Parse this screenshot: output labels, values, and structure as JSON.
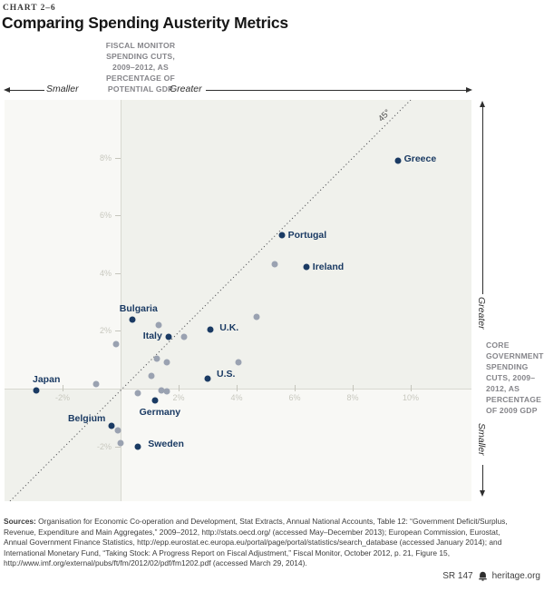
{
  "header": {
    "eyebrow": "CHART 2–6",
    "title": "Comparing Spending Austerity Metrics"
  },
  "x_axis": {
    "label_lines": [
      "FISCAL MONITOR",
      "SPENDING CUTS,",
      "2009–2012, AS",
      "PERCENTAGE OF",
      "POTENTIAL GDP"
    ],
    "smaller": "Smaller",
    "greater": "Greater",
    "ticks": [
      "-2%",
      "2%",
      "4%",
      "6%",
      "8%",
      "10%"
    ]
  },
  "y_axis": {
    "label_lines": [
      "CORE",
      "GOVERNMENT",
      "SPENDING",
      "CUTS, 2009–",
      "2012, AS",
      "PERCENTAGE",
      "OF 2009 GDP"
    ],
    "smaller": "Smaller",
    "greater": "Greater",
    "ticks": [
      "8%",
      "6%",
      "4%",
      "2%",
      "-2%"
    ]
  },
  "colors": {
    "highlight_point": "#1a3a63",
    "other_point": "#9aa2b1",
    "quadrant_shade": "#f0f1ec",
    "plot_background": "#f8f8f5"
  },
  "chart_data": {
    "type": "scatter",
    "title": "Comparing Spending Austerity Metrics",
    "xlabel": "Fiscal Monitor Spending Cuts, 2009–2012, as Percentage of Potential GDP",
    "ylabel": "Core Government Spending Cuts, 2009–2012, as Percentage of 2009 GDP",
    "xlim": [
      -4,
      12.1
    ],
    "ylim": [
      -3.9,
      10
    ],
    "x_ticks": [
      -2,
      2,
      4,
      6,
      8,
      10
    ],
    "y_ticks": [
      8,
      6,
      4,
      2,
      -2
    ],
    "grid": false,
    "reference_line": "45-degree dotted diagonal through origin",
    "diagonal_label": "45°",
    "series": [
      {
        "name": "highlighted-countries",
        "color": "#1a3a63",
        "points": [
          {
            "label": "Greece",
            "x": 9.55,
            "y": 7.9,
            "label_side": "right",
            "dy": -1
          },
          {
            "label": "Portugal",
            "x": 5.55,
            "y": 5.3,
            "label_side": "right"
          },
          {
            "label": "Ireland",
            "x": 6.4,
            "y": 4.2,
            "label_side": "right"
          },
          {
            "label": "Bulgaria",
            "x": 0.4,
            "y": 2.4,
            "label_side": "above",
            "dx": 7
          },
          {
            "label": "U.K.",
            "x": 3.1,
            "y": 2.05,
            "label_side": "right",
            "dx": 3,
            "dy": -1
          },
          {
            "label": "Italy",
            "x": 1.65,
            "y": 1.8,
            "label_side": "left"
          },
          {
            "label": "U.S.",
            "x": 3.0,
            "y": 0.35,
            "label_side": "right",
            "dx": 3,
            "dy": -4
          },
          {
            "label": "Germany",
            "x": 1.2,
            "y": -0.4,
            "label_side": "below",
            "dx": 5
          },
          {
            "label": "Japan",
            "x": -2.9,
            "y": -0.05,
            "label_side": "above",
            "dx": 11
          },
          {
            "label": "Belgium",
            "x": -0.3,
            "y": -1.3,
            "label_side": "left",
            "dy": -8
          },
          {
            "label": "Sweden",
            "x": 0.6,
            "y": -2.0,
            "label_side": "right",
            "dx": 4,
            "dy": -2
          }
        ]
      },
      {
        "name": "other-countries",
        "color": "#9aa2b1",
        "points": [
          {
            "x": 5.3,
            "y": 4.3
          },
          {
            "x": 4.7,
            "y": 2.5
          },
          {
            "x": 1.3,
            "y": 2.2
          },
          {
            "x": 2.2,
            "y": 1.8
          },
          {
            "x": -0.15,
            "y": 1.55
          },
          {
            "x": 1.25,
            "y": 1.05
          },
          {
            "x": 1.6,
            "y": 0.9
          },
          {
            "x": 4.05,
            "y": 0.9
          },
          {
            "x": 1.05,
            "y": 0.45
          },
          {
            "x": -0.85,
            "y": 0.15
          },
          {
            "x": 0.6,
            "y": -0.15
          },
          {
            "x": 1.4,
            "y": -0.05
          },
          {
            "x": 1.6,
            "y": -0.1
          },
          {
            "x": -0.1,
            "y": -1.45
          },
          {
            "x": 0.0,
            "y": -1.9
          }
        ]
      }
    ]
  },
  "sources": {
    "label": "Sources:",
    "text": " Organisation for Economic Co-operation and Development, Stat Extracts, Annual National Accounts, Table 12: “Government Deficit/Surplus, Revenue, Expenditure and Main Aggregates,” 2009–2012, http://stats.oecd.org/ (accessed May–December 2013); European Commission, Eurostat, Annual Government Finance Statistics, http://epp.eurostat.ec.europa.eu/portal/page/portal/statistics/search_database (accessed January 2014); and International Monetary Fund, “Taking Stock: A Progress Report on Fiscal Adjustment,” Fiscal Monitor, October 2012, p. 21, Figure 15, http://www.imf.org/external/pubs/ft/fm/2012/02/pdf/fm1202.pdf (accessed March 29, 2014)."
  },
  "footer": {
    "report_id": "SR 147",
    "site": "heritage.org",
    "logo_icon": "heritage-bell-icon"
  }
}
